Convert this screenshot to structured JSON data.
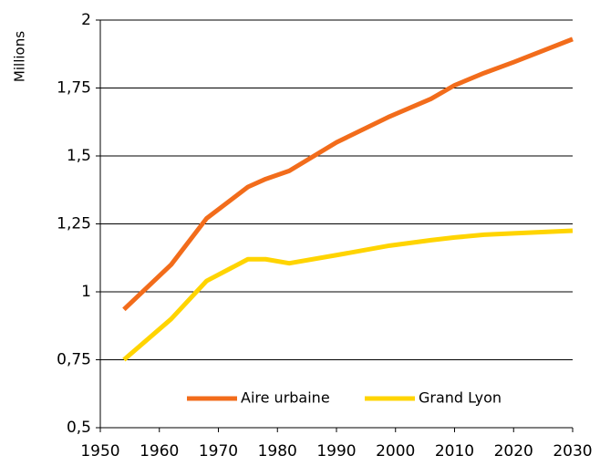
{
  "chart_data": {
    "type": "line",
    "y_label": "Millions",
    "x": [
      1954,
      1962,
      1968,
      1975,
      1978,
      1982,
      1990,
      1999,
      2006,
      2010,
      2015,
      2020,
      2030
    ],
    "series": [
      {
        "name": "Aire urbaine",
        "color": "#f26c1b",
        "values": [
          0.935,
          1.1,
          1.27,
          1.386,
          1.415,
          1.445,
          1.55,
          1.645,
          1.71,
          1.76,
          1.805,
          1.845,
          1.93
        ]
      },
      {
        "name": "Grand Lyon",
        "color": "#ffd400",
        "values": [
          0.75,
          0.9,
          1.04,
          1.12,
          1.12,
          1.105,
          1.135,
          1.17,
          1.19,
          1.2,
          1.21,
          1.215,
          1.225
        ]
      }
    ],
    "xlim": [
      1950,
      2030
    ],
    "xticks": [
      1950,
      1960,
      1970,
      1980,
      1990,
      2000,
      2010,
      2020,
      2030
    ],
    "ylim": [
      0.5,
      2
    ],
    "yticks": [
      {
        "value": 0.5,
        "label": "0,5"
      },
      {
        "value": 0.75,
        "label": "0,75"
      },
      1,
      {
        "value": 1.25,
        "label": "1,25"
      },
      {
        "value": 1.5,
        "label": "1,5"
      },
      {
        "value": 1.75,
        "label": "1,75"
      },
      2
    ],
    "grid": true,
    "legend": "bottom"
  }
}
